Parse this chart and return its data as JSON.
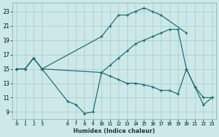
{
  "title": "",
  "xlabel": "Humidex (Indice chaleur)",
  "bg_color": "#cce8e8",
  "grid_color": "#aacece",
  "line_color": "#1a6b6b",
  "xlim": [
    -0.5,
    23.5
  ],
  "ylim": [
    8.0,
    24.2
  ],
  "xtick_vals": [
    0,
    1,
    2,
    3,
    6,
    7,
    8,
    9,
    10,
    11,
    12,
    13,
    14,
    15,
    16,
    17,
    18,
    19,
    20,
    21,
    22,
    23
  ],
  "ytick_vals": [
    9,
    11,
    13,
    15,
    17,
    19,
    21,
    23
  ],
  "lines": [
    {
      "x": [
        0,
        1,
        2,
        3,
        10,
        11,
        12,
        13,
        14,
        15,
        16,
        17,
        20
      ],
      "y": [
        15,
        15,
        16.5,
        15,
        19.5,
        21,
        22.5,
        22.5,
        23,
        23.5,
        23,
        22.5,
        20
      ]
    },
    {
      "x": [
        0,
        1,
        2,
        3,
        10,
        11,
        12,
        13,
        14,
        15,
        16,
        17,
        18,
        19,
        20,
        21,
        22,
        23
      ],
      "y": [
        15,
        15,
        16.5,
        15,
        14.5,
        15.5,
        16.5,
        17.5,
        18.5,
        19,
        19.5,
        20,
        20.5,
        20.5,
        15,
        12.5,
        11,
        11
      ]
    },
    {
      "x": [
        0,
        1,
        2,
        3,
        6,
        7,
        8,
        9,
        10,
        11,
        12,
        13,
        14,
        15,
        16,
        17,
        18,
        19,
        20,
        21,
        22,
        23
      ],
      "y": [
        15,
        15,
        16.5,
        15,
        10.5,
        10,
        8.8,
        9,
        14.5,
        14,
        13.5,
        13,
        13,
        12.8,
        12.5,
        12,
        12,
        11.5,
        15,
        12.5,
        10,
        11
      ]
    }
  ]
}
